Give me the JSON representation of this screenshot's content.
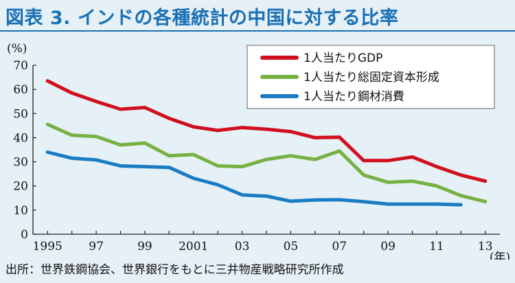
{
  "title": "図表 3. インドの各種統計の中国に対する比率",
  "source": "出所：世界鉄鋼協会、世界銀行をもとに三井物産戦略研究所作成",
  "chart_data": {
    "type": "line",
    "title": "図表 3. インドの各種統計の中国に対する比率",
    "ylabel": "(%)",
    "xlabel": "(年)",
    "ylim": [
      0,
      70
    ],
    "y_ticks": [
      0,
      10,
      20,
      30,
      40,
      50,
      60,
      70
    ],
    "xlim": [
      1994.4,
      2013.6
    ],
    "x_ticks": [
      1995,
      1997,
      1999,
      2001,
      2003,
      2005,
      2007,
      2009,
      2011,
      2013
    ],
    "x_tick_labels": [
      "1995",
      "97",
      "99",
      "2001",
      "03",
      "05",
      "07",
      "09",
      "11",
      "13"
    ],
    "legend_position": "top-right",
    "grid": false,
    "series": [
      {
        "name": "1人当たりGDP",
        "color": "#d0101e",
        "x": [
          1995,
          1996,
          1997,
          1998,
          1999,
          2000,
          2001,
          2002,
          2003,
          2004,
          2005,
          2006,
          2007,
          2008,
          2009,
          2010,
          2011,
          2012,
          2013
        ],
        "values": [
          63.5,
          58.5,
          55.0,
          51.8,
          52.5,
          48.0,
          44.5,
          43.0,
          44.2,
          43.5,
          42.5,
          40.0,
          40.2,
          30.5,
          30.5,
          32.0,
          28.0,
          24.5,
          22.0
        ]
      },
      {
        "name": "1人当たり総固定資本形成",
        "color": "#77b043",
        "x": [
          1995,
          1996,
          1997,
          1998,
          1999,
          2000,
          2001,
          2002,
          2003,
          2004,
          2005,
          2006,
          2007,
          2008,
          2009,
          2010,
          2011,
          2012,
          2013
        ],
        "values": [
          45.5,
          41.0,
          40.5,
          37.0,
          37.8,
          32.5,
          33.0,
          28.3,
          28.0,
          31.0,
          32.5,
          31.0,
          34.5,
          24.5,
          21.5,
          22.0,
          20.0,
          16.0,
          13.5
        ]
      },
      {
        "name": "1人当たり鋼材消費",
        "color": "#1a7cc3",
        "x": [
          1995,
          1996,
          1997,
          1998,
          1999,
          2000,
          2001,
          2002,
          2003,
          2004,
          2005,
          2006,
          2007,
          2008,
          2009,
          2010,
          2011,
          2012
        ],
        "values": [
          34.0,
          31.5,
          30.8,
          28.3,
          28.0,
          27.7,
          23.2,
          20.5,
          16.3,
          15.8,
          13.7,
          14.2,
          14.3,
          13.5,
          12.5,
          12.5,
          12.5,
          12.2
        ]
      }
    ]
  }
}
